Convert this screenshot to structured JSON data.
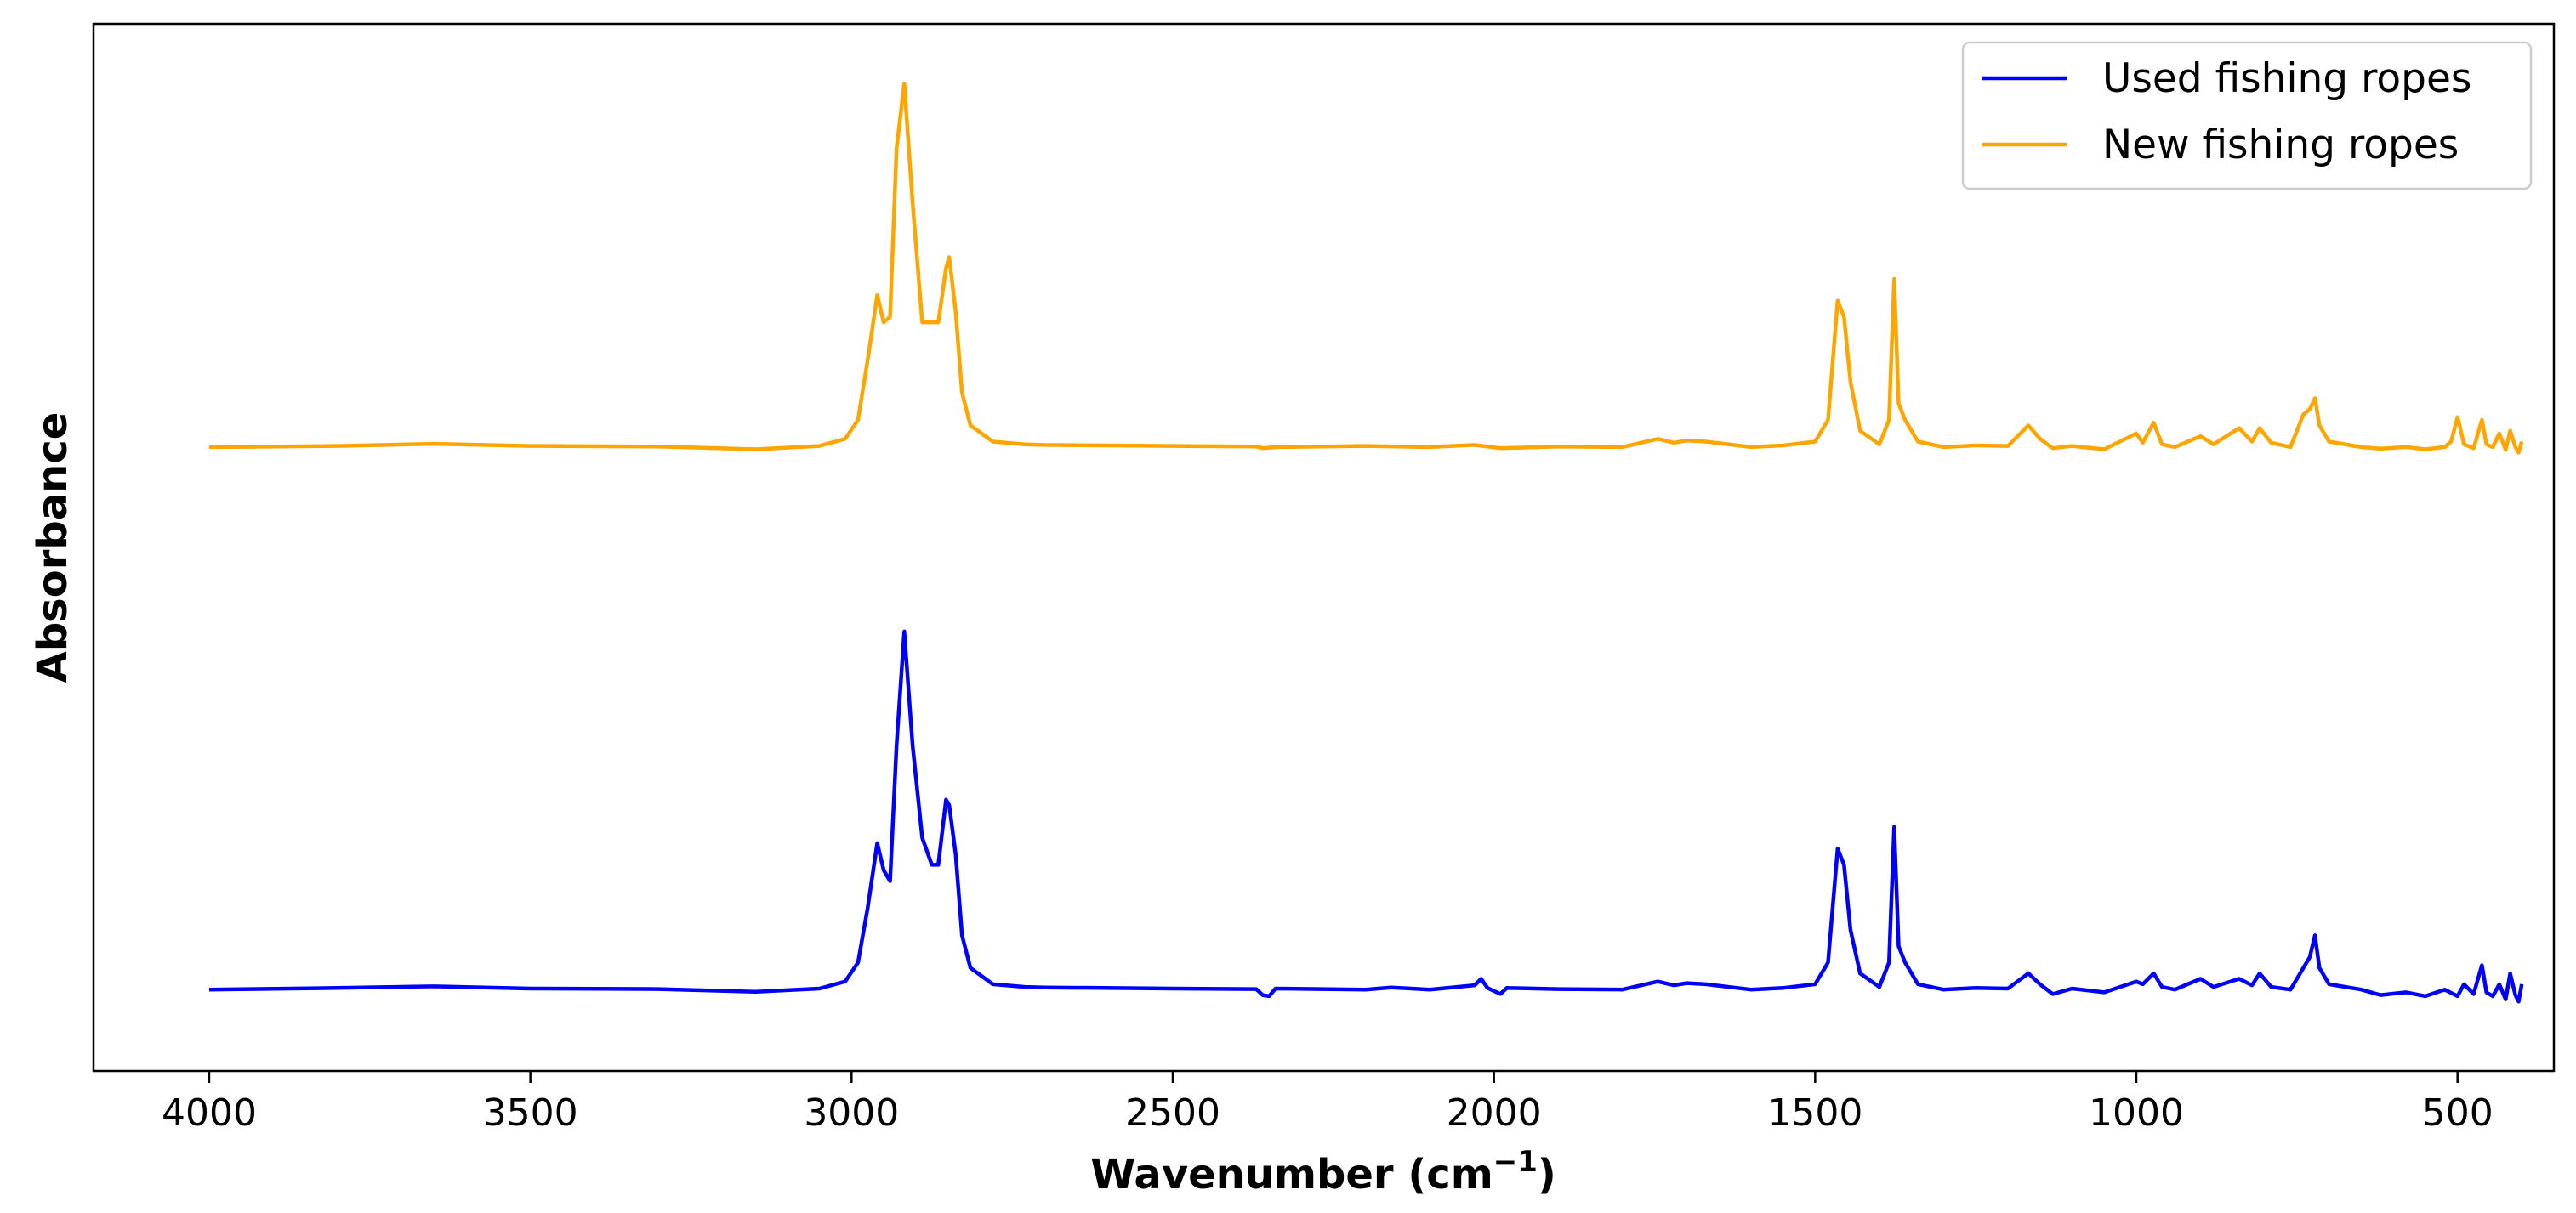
{
  "chart_data": {
    "type": "line",
    "title": "",
    "xlabel": "Wavenumber (cm",
    "xlabel_sup": "−1",
    "xlabel_close": ")",
    "ylabel": "Absorbance",
    "xlim": [
      4180,
      350
    ],
    "x_reversed": true,
    "ylim": [
      -0.15,
      1.78
    ],
    "y_ticks_shown": false,
    "x_ticks": [
      4000,
      3500,
      3000,
      2500,
      2000,
      1500,
      1000,
      500
    ],
    "grid": false,
    "legend_position": "top-right",
    "series": [
      {
        "name": "Used fishing ropes",
        "color": "#0000ff",
        "points": [
          [
            4000,
            0.0
          ],
          [
            3800,
            0.003
          ],
          [
            3650,
            0.006
          ],
          [
            3500,
            0.002
          ],
          [
            3300,
            0.001
          ],
          [
            3150,
            -0.004
          ],
          [
            3050,
            0.002
          ],
          [
            3010,
            0.015
          ],
          [
            2990,
            0.05
          ],
          [
            2975,
            0.15
          ],
          [
            2960,
            0.27
          ],
          [
            2950,
            0.22
          ],
          [
            2940,
            0.2
          ],
          [
            2930,
            0.45
          ],
          [
            2918,
            0.66
          ],
          [
            2905,
            0.45
          ],
          [
            2890,
            0.28
          ],
          [
            2875,
            0.23
          ],
          [
            2865,
            0.23
          ],
          [
            2853,
            0.35
          ],
          [
            2848,
            0.34
          ],
          [
            2838,
            0.25
          ],
          [
            2828,
            0.1
          ],
          [
            2815,
            0.04
          ],
          [
            2780,
            0.01
          ],
          [
            2730,
            0.005
          ],
          [
            2700,
            0.004
          ],
          [
            2500,
            0.002
          ],
          [
            2370,
            0.001
          ],
          [
            2360,
            -0.01
          ],
          [
            2350,
            -0.012
          ],
          [
            2340,
            0.002
          ],
          [
            2200,
            0.0
          ],
          [
            2160,
            0.004
          ],
          [
            2100,
            0.0
          ],
          [
            2030,
            0.008
          ],
          [
            2020,
            0.02
          ],
          [
            2010,
            0.003
          ],
          [
            1990,
            -0.008
          ],
          [
            1980,
            0.003
          ],
          [
            1900,
            0.001
          ],
          [
            1800,
            0.0
          ],
          [
            1745,
            0.015
          ],
          [
            1720,
            0.008
          ],
          [
            1700,
            0.012
          ],
          [
            1670,
            0.01
          ],
          [
            1600,
            0.0
          ],
          [
            1550,
            0.003
          ],
          [
            1500,
            0.01
          ],
          [
            1480,
            0.05
          ],
          [
            1465,
            0.26
          ],
          [
            1455,
            0.23
          ],
          [
            1445,
            0.11
          ],
          [
            1430,
            0.03
          ],
          [
            1400,
            0.005
          ],
          [
            1385,
            0.05
          ],
          [
            1377,
            0.3
          ],
          [
            1370,
            0.08
          ],
          [
            1360,
            0.05
          ],
          [
            1340,
            0.01
          ],
          [
            1300,
            0.0
          ],
          [
            1250,
            0.003
          ],
          [
            1200,
            0.002
          ],
          [
            1168,
            0.03
          ],
          [
            1150,
            0.01
          ],
          [
            1130,
            -0.008
          ],
          [
            1100,
            0.002
          ],
          [
            1050,
            -0.005
          ],
          [
            1000,
            0.015
          ],
          [
            990,
            0.01
          ],
          [
            973,
            0.03
          ],
          [
            960,
            0.005
          ],
          [
            940,
            0.0
          ],
          [
            900,
            0.02
          ],
          [
            880,
            0.005
          ],
          [
            840,
            0.02
          ],
          [
            820,
            0.008
          ],
          [
            808,
            0.03
          ],
          [
            790,
            0.005
          ],
          [
            760,
            0.0
          ],
          [
            740,
            0.04
          ],
          [
            730,
            0.06
          ],
          [
            722,
            0.1
          ],
          [
            715,
            0.04
          ],
          [
            700,
            0.01
          ],
          [
            650,
            0.0
          ],
          [
            620,
            -0.01
          ],
          [
            580,
            -0.005
          ],
          [
            550,
            -0.012
          ],
          [
            520,
            0.0
          ],
          [
            500,
            -0.012
          ],
          [
            490,
            0.01
          ],
          [
            475,
            -0.008
          ],
          [
            462,
            0.045
          ],
          [
            455,
            -0.005
          ],
          [
            445,
            -0.012
          ],
          [
            435,
            0.01
          ],
          [
            425,
            -0.018
          ],
          [
            418,
            0.03
          ],
          [
            410,
            -0.01
          ],
          [
            405,
            -0.022
          ],
          [
            400,
            0.01
          ]
        ]
      },
      {
        "name": "New fishing ropes",
        "color": "#ffa500",
        "points": [
          [
            4000,
            1.0
          ],
          [
            3800,
            1.002
          ],
          [
            3650,
            1.006
          ],
          [
            3500,
            1.002
          ],
          [
            3300,
            1.001
          ],
          [
            3150,
            0.996
          ],
          [
            3050,
            1.002
          ],
          [
            3010,
            1.015
          ],
          [
            2990,
            1.05
          ],
          [
            2975,
            1.16
          ],
          [
            2960,
            1.28
          ],
          [
            2950,
            1.23
          ],
          [
            2940,
            1.24
          ],
          [
            2930,
            1.55
          ],
          [
            2918,
            1.67
          ],
          [
            2905,
            1.45
          ],
          [
            2890,
            1.23
          ],
          [
            2875,
            1.23
          ],
          [
            2865,
            1.23
          ],
          [
            2853,
            1.33
          ],
          [
            2848,
            1.35
          ],
          [
            2838,
            1.25
          ],
          [
            2828,
            1.1
          ],
          [
            2815,
            1.04
          ],
          [
            2780,
            1.01
          ],
          [
            2730,
            1.005
          ],
          [
            2700,
            1.004
          ],
          [
            2500,
            1.002
          ],
          [
            2370,
            1.001
          ],
          [
            2360,
            0.998
          ],
          [
            2340,
            1.0
          ],
          [
            2200,
            1.002
          ],
          [
            2100,
            1.0
          ],
          [
            2030,
            1.004
          ],
          [
            2010,
            1.001
          ],
          [
            1990,
            0.998
          ],
          [
            1900,
            1.001
          ],
          [
            1800,
            1.0
          ],
          [
            1745,
            1.015
          ],
          [
            1720,
            1.008
          ],
          [
            1700,
            1.012
          ],
          [
            1670,
            1.01
          ],
          [
            1600,
            1.0
          ],
          [
            1550,
            1.003
          ],
          [
            1500,
            1.01
          ],
          [
            1480,
            1.05
          ],
          [
            1465,
            1.27
          ],
          [
            1455,
            1.24
          ],
          [
            1445,
            1.12
          ],
          [
            1430,
            1.03
          ],
          [
            1400,
            1.005
          ],
          [
            1385,
            1.05
          ],
          [
            1377,
            1.31
          ],
          [
            1370,
            1.08
          ],
          [
            1360,
            1.05
          ],
          [
            1340,
            1.01
          ],
          [
            1300,
            1.0
          ],
          [
            1250,
            1.003
          ],
          [
            1200,
            1.002
          ],
          [
            1168,
            1.04
          ],
          [
            1150,
            1.015
          ],
          [
            1130,
            0.998
          ],
          [
            1100,
            1.002
          ],
          [
            1050,
            0.996
          ],
          [
            1000,
            1.025
          ],
          [
            990,
            1.008
          ],
          [
            973,
            1.045
          ],
          [
            960,
            1.005
          ],
          [
            940,
            1.0
          ],
          [
            900,
            1.02
          ],
          [
            880,
            1.005
          ],
          [
            840,
            1.035
          ],
          [
            820,
            1.01
          ],
          [
            808,
            1.035
          ],
          [
            790,
            1.008
          ],
          [
            760,
            1.0
          ],
          [
            740,
            1.06
          ],
          [
            730,
            1.07
          ],
          [
            722,
            1.09
          ],
          [
            715,
            1.04
          ],
          [
            700,
            1.01
          ],
          [
            650,
            1.0
          ],
          [
            620,
            0.997
          ],
          [
            580,
            1.0
          ],
          [
            550,
            0.996
          ],
          [
            520,
            1.0
          ],
          [
            510,
            1.01
          ],
          [
            500,
            1.055
          ],
          [
            490,
            1.005
          ],
          [
            475,
            0.998
          ],
          [
            462,
            1.05
          ],
          [
            455,
            1.005
          ],
          [
            445,
            1.0
          ],
          [
            435,
            1.025
          ],
          [
            425,
            0.995
          ],
          [
            418,
            1.03
          ],
          [
            410,
            1.0
          ],
          [
            405,
            0.99
          ],
          [
            400,
            1.01
          ]
        ]
      }
    ]
  }
}
